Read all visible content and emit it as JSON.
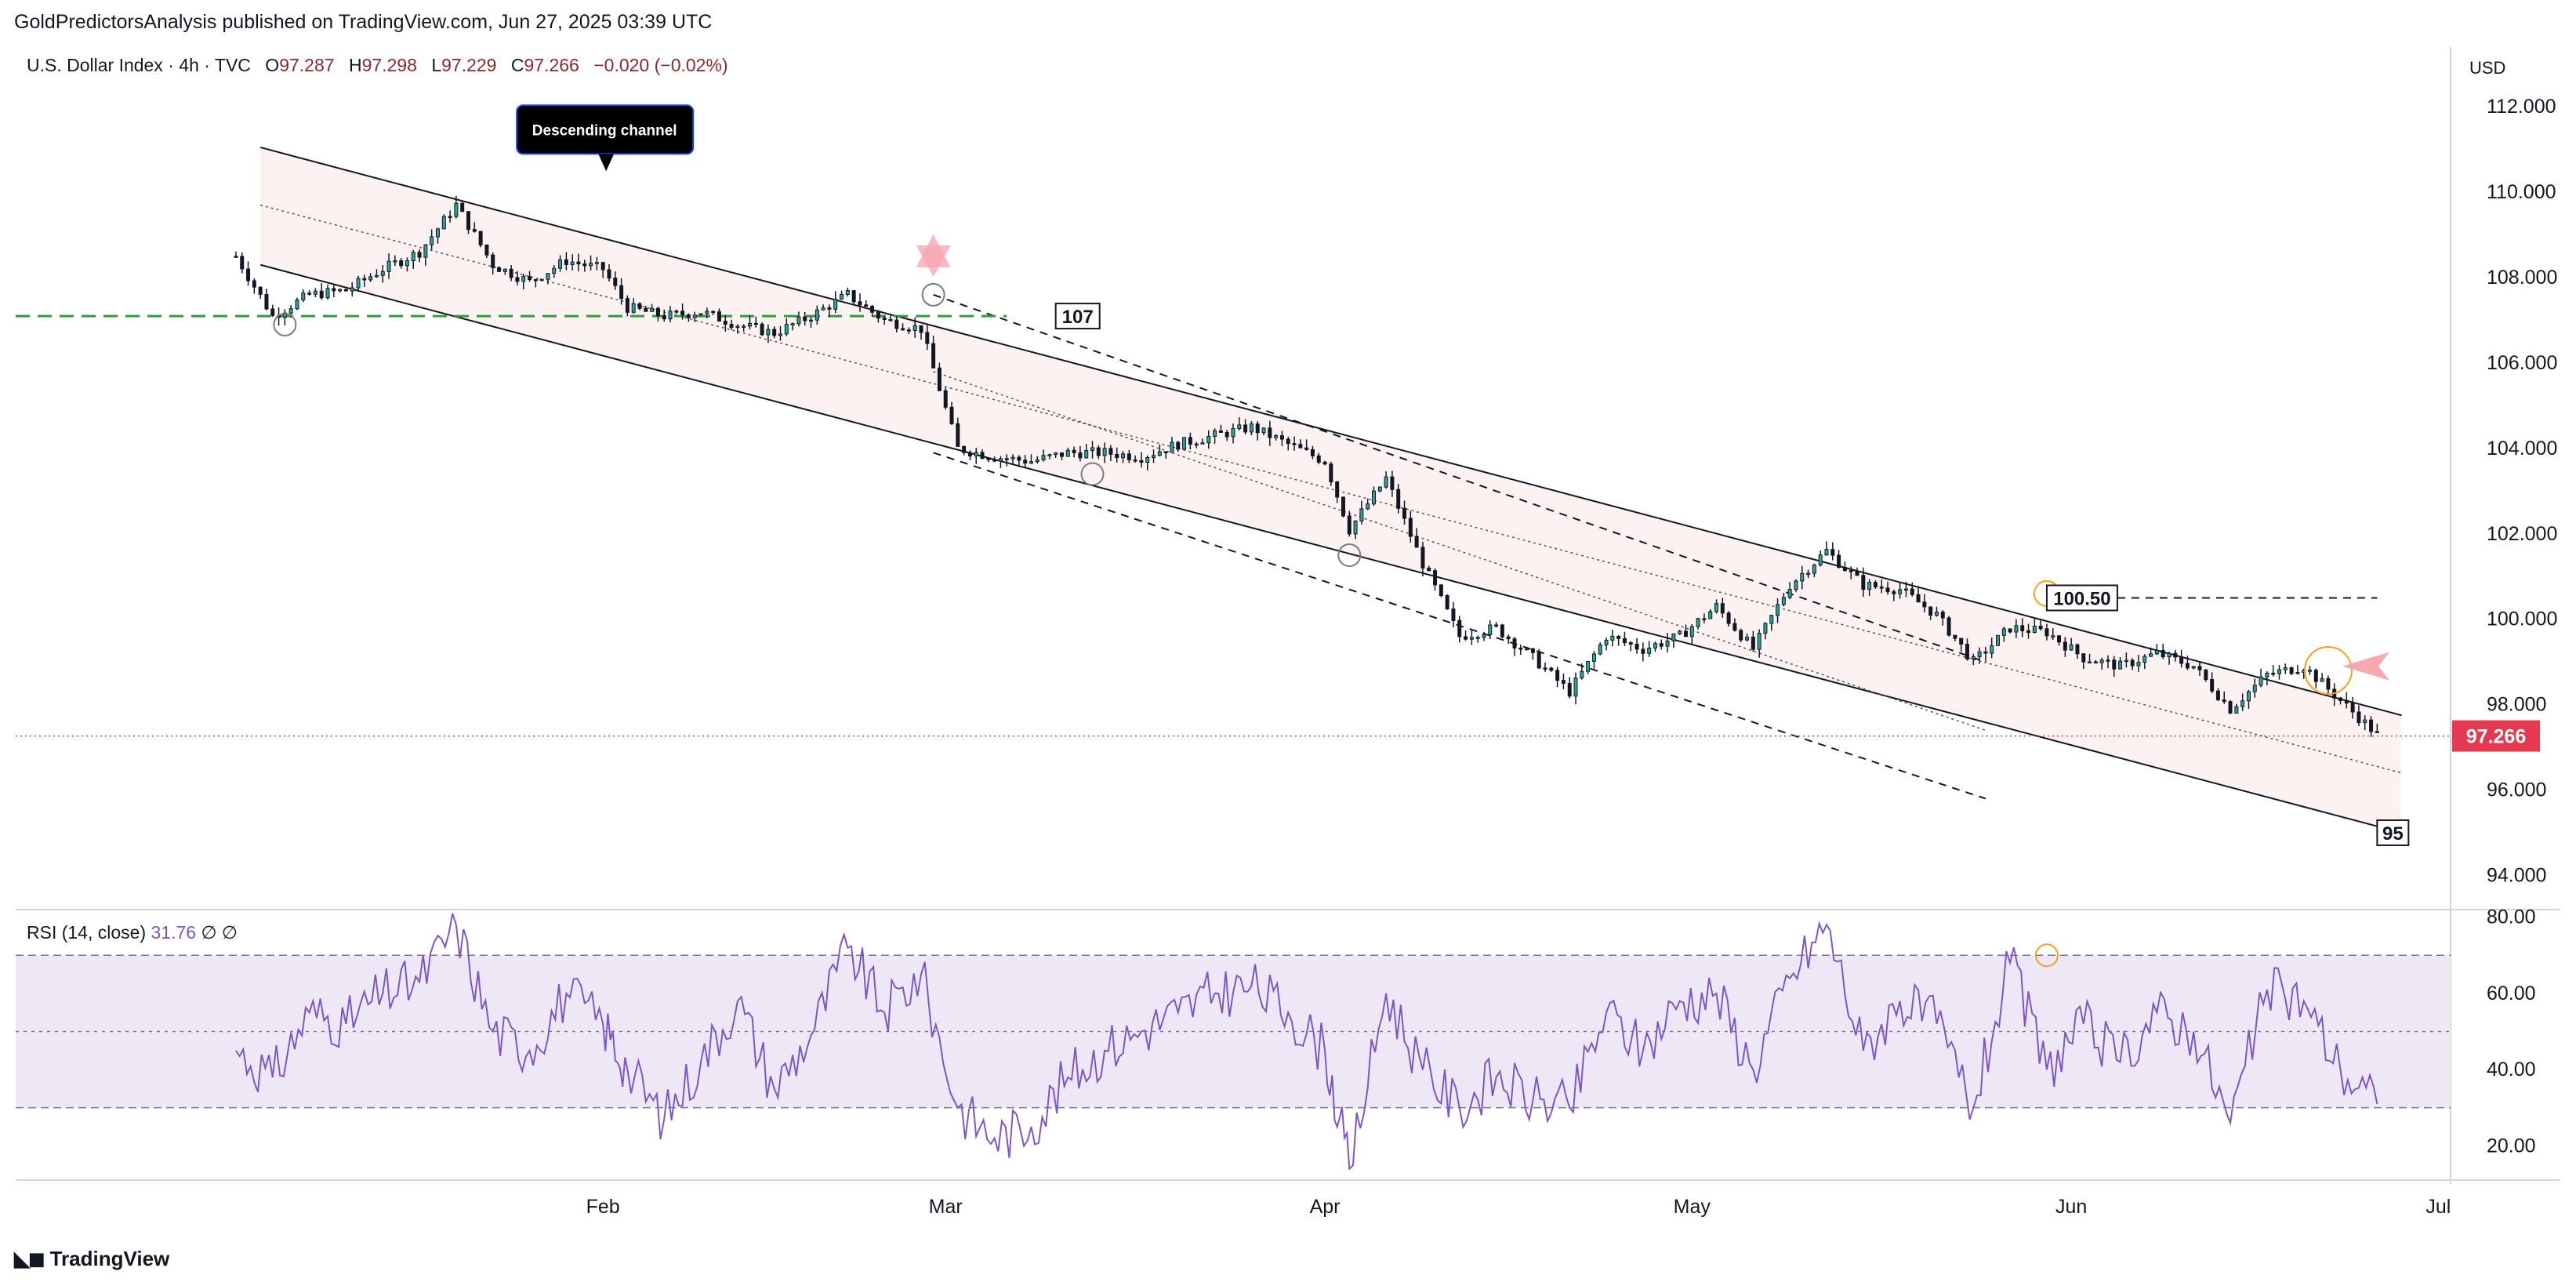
{
  "header": {
    "attribution": "GoldPredictorsAnalysis published on TradingView.com, Jun 27, 2025 03:39 UTC"
  },
  "legend": {
    "symbol": "U.S. Dollar Index · 4h · TVC",
    "open_label": "O",
    "open": "97.287",
    "high_label": "H",
    "high": "97.298",
    "low_label": "L",
    "low": "97.229",
    "close_label": "C",
    "close": "97.266",
    "change": "−0.020 (−0.02%)"
  },
  "rsi_legend": {
    "label": "RSI (14, close)",
    "value": "31.76",
    "extra1": "∅",
    "extra2": "∅"
  },
  "currency": "USD",
  "footer": {
    "brand": "TradingView",
    "logo_icon": "tradingview-logo-icon"
  },
  "colors": {
    "up": "#26a69a",
    "down": "#ef5350",
    "candle_body": "#131722",
    "rsi_line": "#7e57c2",
    "rsi_band": "#ede7f6",
    "last_price": "#e53950",
    "support_dash": "#2e9d3a",
    "channel_fill": "#fdf2f2"
  },
  "chart_data": [
    {
      "type": "line",
      "title": "U.S. Dollar Index · 4h · TVC",
      "y_axis_label": "USD",
      "ylim": [
        93.2,
        113.4
      ],
      "y_ticks": [
        "112.000",
        "110.000",
        "108.000",
        "106.000",
        "104.000",
        "102.000",
        "100.000",
        "98.000",
        "96.000",
        "94.000"
      ],
      "x_ticks": [
        "Feb",
        "Mar",
        "Apr",
        "May",
        "Jun",
        "Jul"
      ],
      "x_tick_dates": [
        "2025-02-01",
        "2025-03-01",
        "2025-04-01",
        "2025-05-01",
        "2025-06-01",
        "2025-07-01"
      ],
      "last_price": "97.266",
      "series": [
        {
          "x": [
            "2025-01-02",
            "2025-01-05",
            "2025-01-08",
            "2025-01-11",
            "2025-01-14",
            "2025-01-17",
            "2025-01-20",
            "2025-01-23",
            "2025-01-26",
            "2025-01-29",
            "2025-02-01",
            "2025-02-03",
            "2025-02-06",
            "2025-02-09",
            "2025-02-12",
            "2025-02-15",
            "2025-02-18",
            "2025-02-21",
            "2025-02-24",
            "2025-02-27",
            "2025-03-02",
            "2025-03-05",
            "2025-03-08",
            "2025-03-11",
            "2025-03-14",
            "2025-03-17",
            "2025-03-20",
            "2025-03-23",
            "2025-03-26",
            "2025-03-29",
            "2025-04-01",
            "2025-04-03",
            "2025-04-06",
            "2025-04-09",
            "2025-04-12",
            "2025-04-15",
            "2025-04-18",
            "2025-04-21",
            "2025-04-24",
            "2025-04-27",
            "2025-04-30",
            "2025-05-03",
            "2025-05-06",
            "2025-05-09",
            "2025-05-12",
            "2025-05-15",
            "2025-05-18",
            "2025-05-21",
            "2025-05-24",
            "2025-05-27",
            "2025-05-30",
            "2025-06-02",
            "2025-06-05",
            "2025-06-08",
            "2025-06-11",
            "2025-06-14",
            "2025-06-17",
            "2025-06-20",
            "2025-06-23",
            "2025-06-26"
          ],
          "values": [
            108.5,
            107.1,
            107.6,
            107.7,
            108.2,
            108.6,
            109.7,
            108.3,
            107.9,
            108.4,
            108.2,
            107.3,
            107.1,
            107.2,
            106.9,
            106.7,
            107.1,
            107.6,
            107.0,
            106.8,
            104.0,
            103.8,
            103.7,
            103.9,
            103.9,
            103.8,
            104.1,
            104.3,
            104.5,
            104.1,
            103.7,
            102.1,
            103.3,
            101.3,
            99.6,
            99.8,
            99.1,
            98.3,
            99.6,
            99.3,
            99.6,
            100.3,
            99.3,
            100.8,
            101.6,
            100.8,
            100.7,
            100.1,
            99.0,
            99.8,
            99.7,
            99.1,
            98.9,
            99.2,
            98.9,
            97.9,
            98.7,
            98.9,
            98.1,
            97.3
          ]
        }
      ],
      "annotations": [
        {
          "text": "Descending channel",
          "date": "2025-02-01",
          "value": 110.2
        },
        {
          "text": "107",
          "date": "2025-03-10",
          "value": 107.1
        },
        {
          "text": "100.50",
          "date": "2025-05-30",
          "value": 100.5
        },
        {
          "text": "95",
          "date": "2025-06-26",
          "value": 95.0
        }
      ]
    },
    {
      "type": "line",
      "title": "RSI (14, close)",
      "ylim": [
        11,
        82
      ],
      "y_ticks": [
        "80.00",
        "60.00",
        "40.00",
        "20.00"
      ],
      "band": [
        30,
        70
      ],
      "midline": 50,
      "series": [
        {
          "name": "RSI",
          "x": [
            "2025-01-02",
            "2025-01-05",
            "2025-01-08",
            "2025-01-11",
            "2025-01-14",
            "2025-01-17",
            "2025-01-20",
            "2025-01-23",
            "2025-01-26",
            "2025-01-29",
            "2025-02-01",
            "2025-02-03",
            "2025-02-06",
            "2025-02-09",
            "2025-02-12",
            "2025-02-15",
            "2025-02-18",
            "2025-02-21",
            "2025-02-24",
            "2025-02-27",
            "2025-03-02",
            "2025-03-05",
            "2025-03-08",
            "2025-03-11",
            "2025-03-14",
            "2025-03-17",
            "2025-03-20",
            "2025-03-23",
            "2025-03-26",
            "2025-03-29",
            "2025-04-01",
            "2025-04-03",
            "2025-04-06",
            "2025-04-09",
            "2025-04-12",
            "2025-04-15",
            "2025-04-18",
            "2025-04-21",
            "2025-04-24",
            "2025-04-27",
            "2025-04-30",
            "2025-05-03",
            "2025-05-06",
            "2025-05-09",
            "2025-05-12",
            "2025-05-15",
            "2025-05-18",
            "2025-05-21",
            "2025-05-24",
            "2025-05-27",
            "2025-05-30",
            "2025-06-02",
            "2025-06-05",
            "2025-06-08",
            "2025-06-11",
            "2025-06-14",
            "2025-06-17",
            "2025-06-20",
            "2025-06-23",
            "2025-06-26"
          ],
          "values": [
            45,
            38,
            55,
            52,
            60,
            63,
            78,
            50,
            45,
            60,
            52,
            40,
            27,
            42,
            58,
            35,
            49,
            72,
            55,
            65,
            30,
            22,
            25,
            38,
            45,
            50,
            55,
            60,
            62,
            55,
            45,
            14,
            60,
            40,
            30,
            38,
            32,
            30,
            55,
            45,
            58,
            60,
            40,
            64,
            78,
            45,
            58,
            52,
            30,
            68,
            40,
            52,
            42,
            55,
            50,
            26,
            61,
            58,
            40,
            31
          ]
        }
      ]
    }
  ]
}
